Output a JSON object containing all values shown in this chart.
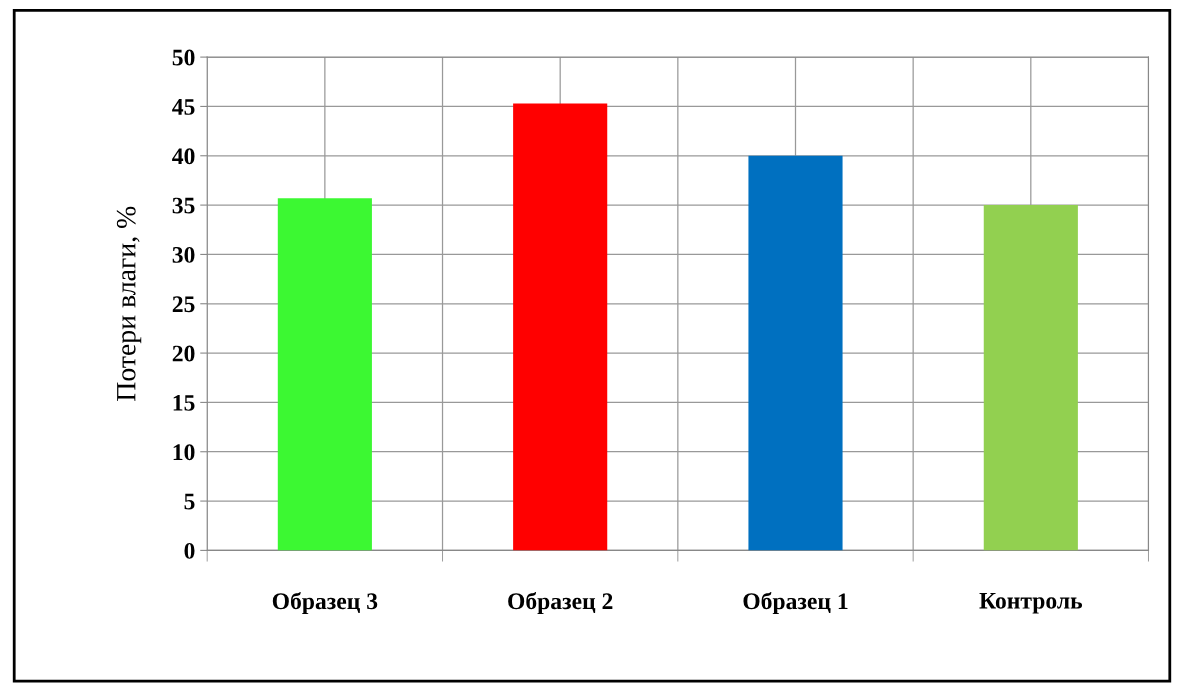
{
  "chart_data": {
    "type": "bar",
    "ylabel": "Потери влаги, %",
    "categories": [
      "Образец 3",
      "Образец 2",
      "Образец 1",
      "Контроль"
    ],
    "values": [
      35.7,
      45.3,
      40,
      35
    ],
    "colors": [
      "#3cf832",
      "#ff0000",
      "#0070c0",
      "#92d050"
    ],
    "ylim": [
      0,
      50
    ],
    "yticks": [
      0,
      5,
      10,
      15,
      20,
      25,
      30,
      35,
      40,
      45,
      50
    ],
    "grid": true,
    "legend": false
  }
}
